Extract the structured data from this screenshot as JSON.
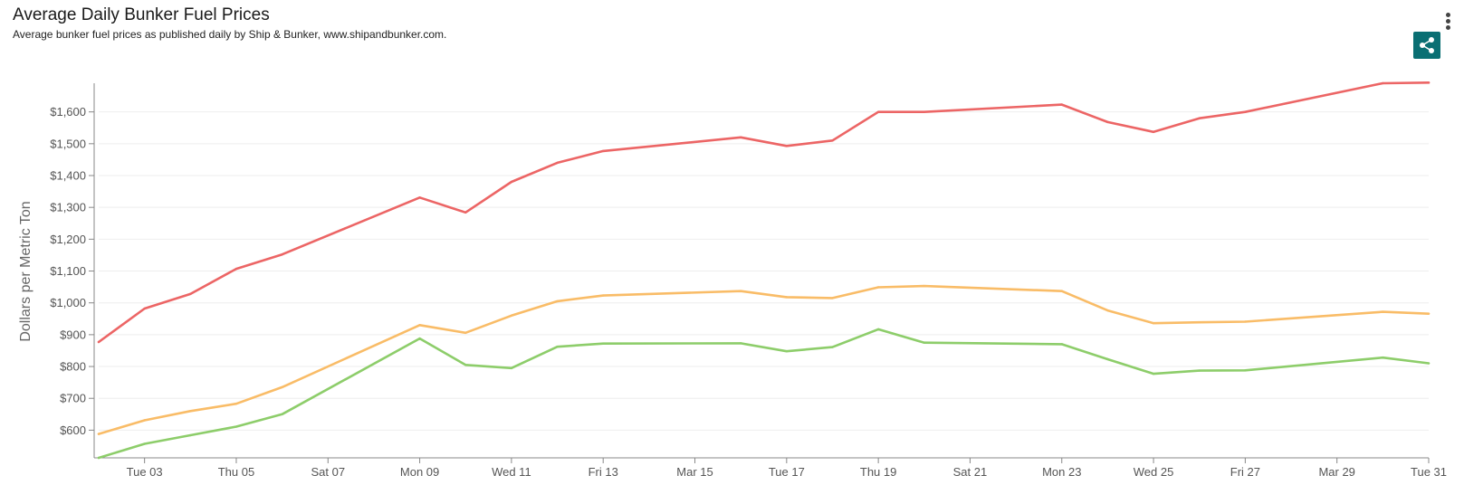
{
  "header": {
    "title": "Average Daily Bunker Fuel Prices",
    "subtitle": "Average bunker fuel prices as published daily by Ship & Bunker, www.shipandbunker.com."
  },
  "toolbar": {
    "menu_icon": "vertical-dots-icon",
    "share_icon": "share-icon",
    "share_color": "#0a6f73"
  },
  "chart_data": {
    "type": "line",
    "title": "Average Daily Bunker Fuel Prices",
    "subtitle": "Average bunker fuel prices as published daily by Ship & Bunker, www.shipandbunker.com.",
    "xlabel": "",
    "ylabel": "Dollars per Metric Ton",
    "grid": true,
    "legend": "none",
    "x_day_range": [
      2,
      31
    ],
    "x_ticks": [
      {
        "day": 3,
        "label": "Tue 03"
      },
      {
        "day": 5,
        "label": "Thu 05"
      },
      {
        "day": 7,
        "label": "Sat 07"
      },
      {
        "day": 9,
        "label": "Mon 09"
      },
      {
        "day": 11,
        "label": "Wed 11"
      },
      {
        "day": 13,
        "label": "Fri 13"
      },
      {
        "day": 15,
        "label": "Mar 15"
      },
      {
        "day": 17,
        "label": "Tue 17"
      },
      {
        "day": 19,
        "label": "Thu 19"
      },
      {
        "day": 21,
        "label": "Sat 21"
      },
      {
        "day": 23,
        "label": "Mon 23"
      },
      {
        "day": 25,
        "label": "Wed 25"
      },
      {
        "day": 27,
        "label": "Fri 27"
      },
      {
        "day": 29,
        "label": "Mar 29"
      },
      {
        "day": 31,
        "label": "Tue 31"
      }
    ],
    "y_ticks": [
      {
        "value": 600,
        "label": "$600"
      },
      {
        "value": 700,
        "label": "$700"
      },
      {
        "value": 800,
        "label": "$800"
      },
      {
        "value": 900,
        "label": "$900"
      },
      {
        "value": 1000,
        "label": "$1,000"
      },
      {
        "value": 1100,
        "label": "$1,100"
      },
      {
        "value": 1200,
        "label": "$1,200"
      },
      {
        "value": 1300,
        "label": "$1,300"
      },
      {
        "value": 1400,
        "label": "$1,400"
      },
      {
        "value": 1500,
        "label": "$1,500"
      },
      {
        "value": 1600,
        "label": "$1,600"
      }
    ],
    "ylim": [
      513,
      1690
    ],
    "x": [
      2,
      3,
      4,
      5,
      6,
      9,
      10,
      11,
      12,
      13,
      16,
      17,
      18,
      19,
      20,
      23,
      24,
      25,
      26,
      27,
      30,
      31
    ],
    "series": [
      {
        "color": "#ec6565",
        "values": [
          877,
          982,
          1028,
          1107,
          1152,
          1331,
          1284,
          1380,
          1440,
          1477,
          1520,
          1493,
          1510,
          1600,
          1600,
          1623,
          1568,
          1537,
          1580,
          1600,
          1690,
          1692
        ]
      },
      {
        "color": "#f9bc67",
        "values": [
          588,
          631,
          660,
          683,
          735,
          930,
          906,
          960,
          1005,
          1023,
          1037,
          1018,
          1015,
          1049,
          1053,
          1037,
          976,
          936,
          939,
          941,
          972,
          966
        ]
      },
      {
        "color": "#8dcd6a",
        "values": [
          513,
          557,
          584,
          611,
          650,
          888,
          805,
          795,
          862,
          872,
          873,
          848,
          861,
          917,
          875,
          870,
          823,
          777,
          787,
          788,
          828,
          810
        ]
      }
    ]
  }
}
